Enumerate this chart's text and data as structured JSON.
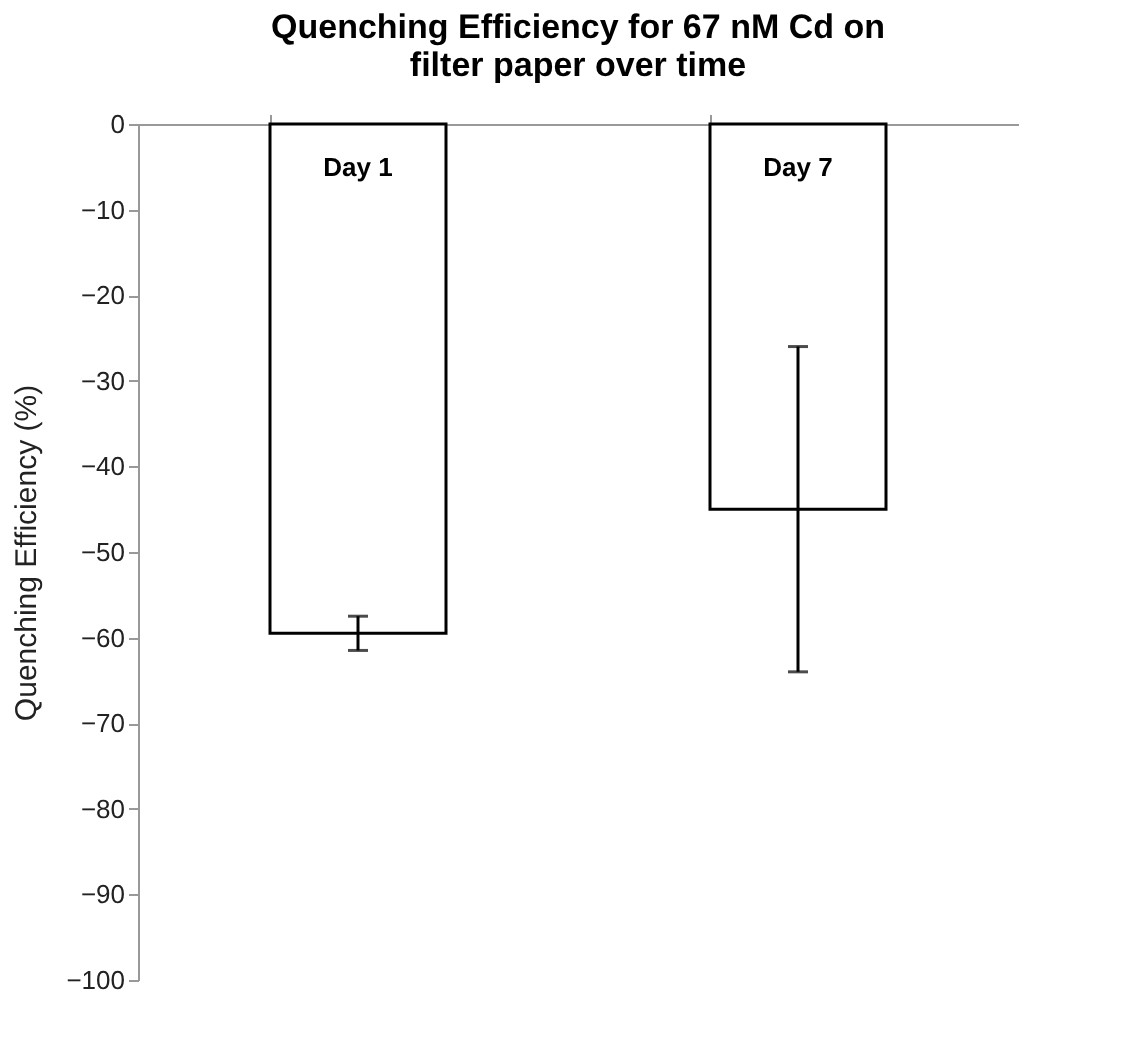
{
  "chart_data": {
    "type": "bar",
    "title": [
      "Quenching Efficiency for 67 nM Cd on",
      "filter paper over time"
    ],
    "ylabel": "Quenching Efficiency (%)",
    "categories": [
      "Day 1",
      "Day 7"
    ],
    "values": [
      -59.5,
      -45
    ],
    "errors": [
      2,
      19
    ],
    "color": "#ffffff",
    "ylim": [
      -100,
      0
    ],
    "yticks": [
      0,
      -10,
      -20,
      -30,
      -40,
      -50,
      -60,
      -70,
      -80,
      -90,
      -100
    ],
    "grid": false
  }
}
